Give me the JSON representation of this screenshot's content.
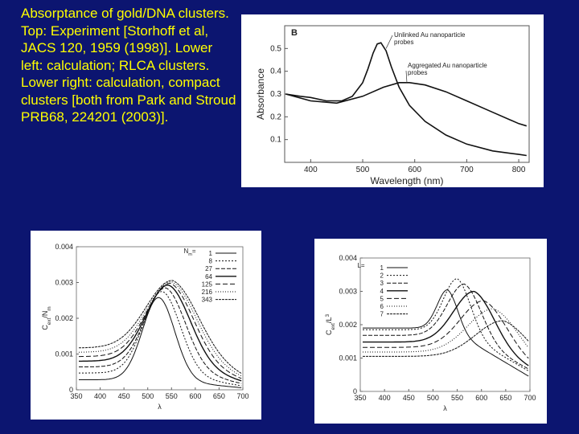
{
  "caption": "Absorptance of gold/DNA clusters.  Top: Experiment [Storhoff et al, JACS 120, 1959 (1998)].  Lower left: calculation; RLCA clusters. Lower right: calculation, compact clusters [both from Park and Stroud PRB68, 224201 (2003)].",
  "chart_data": [
    {
      "type": "line",
      "panel_label": "B",
      "xlabel": "Wavelength (nm)",
      "ylabel": "Absorbance",
      "xlim": [
        350,
        820
      ],
      "ylim": [
        0,
        0.6
      ],
      "x_ticks": [
        "400",
        "500",
        "600",
        "700",
        "800"
      ],
      "y_ticks": [
        "0.1",
        "0.2",
        "0.3",
        "0.4",
        "0.5"
      ],
      "annotations": [
        "Unlinked Au nanoparticle probes",
        "Aggregated Au nanoparticle probes"
      ],
      "series": [
        {
          "name": "Unlinked Au nanoparticle probes",
          "x": [
            352,
            380,
            400,
            430,
            460,
            480,
            500,
            510,
            520,
            528,
            535,
            545,
            555,
            570,
            590,
            620,
            660,
            700,
            750,
            800,
            815
          ],
          "y": [
            0.3,
            0.29,
            0.285,
            0.27,
            0.27,
            0.29,
            0.35,
            0.41,
            0.48,
            0.52,
            0.525,
            0.49,
            0.42,
            0.33,
            0.25,
            0.18,
            0.12,
            0.08,
            0.05,
            0.035,
            0.03
          ]
        },
        {
          "name": "Aggregated Au nanoparticle probes",
          "x": [
            352,
            400,
            450,
            500,
            540,
            570,
            590,
            620,
            660,
            700,
            750,
            800,
            815
          ],
          "y": [
            0.3,
            0.27,
            0.26,
            0.29,
            0.33,
            0.35,
            0.35,
            0.34,
            0.31,
            0.27,
            0.22,
            0.17,
            0.16
          ]
        }
      ]
    },
    {
      "type": "line",
      "xlabel": "λ",
      "ylabel": "C_ext/N_m",
      "xlim": [
        350,
        700
      ],
      "ylim": [
        0,
        0.004
      ],
      "x_ticks": [
        "350",
        "400",
        "450",
        "500",
        "550",
        "600",
        "650",
        "700"
      ],
      "y_ticks": [
        "0",
        "0.001",
        "0.002",
        "0.003",
        "0.004"
      ],
      "legend_title": "N_m=",
      "series": [
        {
          "name": "1",
          "peak_x": 523,
          "peak_y": 0.00258,
          "base": 0.00028,
          "width": 48
        },
        {
          "name": "8",
          "peak_x": 530,
          "peak_y": 0.00275,
          "base": 0.00047,
          "width": 55
        },
        {
          "name": "27",
          "peak_x": 537,
          "peak_y": 0.00285,
          "base": 0.00064,
          "width": 60
        },
        {
          "name": "64",
          "peak_x": 543,
          "peak_y": 0.00293,
          "base": 0.0008,
          "width": 66
        },
        {
          "name": "125",
          "peak_x": 547,
          "peak_y": 0.00298,
          "base": 0.00093,
          "width": 70
        },
        {
          "name": "216",
          "peak_x": 550,
          "peak_y": 0.00302,
          "base": 0.00105,
          "width": 74
        },
        {
          "name": "343",
          "peak_x": 552,
          "peak_y": 0.00306,
          "base": 0.00117,
          "width": 78
        }
      ]
    },
    {
      "type": "line",
      "xlabel": "λ",
      "ylabel": "C_ext/L^3",
      "xlim": [
        350,
        700
      ],
      "ylim": [
        0,
        0.004
      ],
      "x_ticks": [
        "350",
        "400",
        "450",
        "500",
        "550",
        "600",
        "650",
        "700"
      ],
      "y_ticks": [
        "0",
        "0.001",
        "0.002",
        "0.003",
        "0.004"
      ],
      "legend_title": "L=",
      "series": [
        {
          "name": "1",
          "peak_x": 530,
          "peak_y": 0.00305,
          "base": 0.0019,
          "width": 30
        },
        {
          "name": "2",
          "peak_x": 550,
          "peak_y": 0.00338,
          "base": 0.00185,
          "width": 40
        },
        {
          "name": "3",
          "peak_x": 565,
          "peak_y": 0.00322,
          "base": 0.00168,
          "width": 50
        },
        {
          "name": "4",
          "peak_x": 585,
          "peak_y": 0.003,
          "base": 0.00148,
          "width": 60
        },
        {
          "name": "5",
          "peak_x": 605,
          "peak_y": 0.00272,
          "base": 0.00132,
          "width": 68
        },
        {
          "name": "6",
          "peak_x": 625,
          "peak_y": 0.00248,
          "base": 0.00118,
          "width": 75
        },
        {
          "name": "7",
          "peak_x": 645,
          "peak_y": 0.00212,
          "base": 0.00105,
          "width": 80
        }
      ]
    }
  ]
}
